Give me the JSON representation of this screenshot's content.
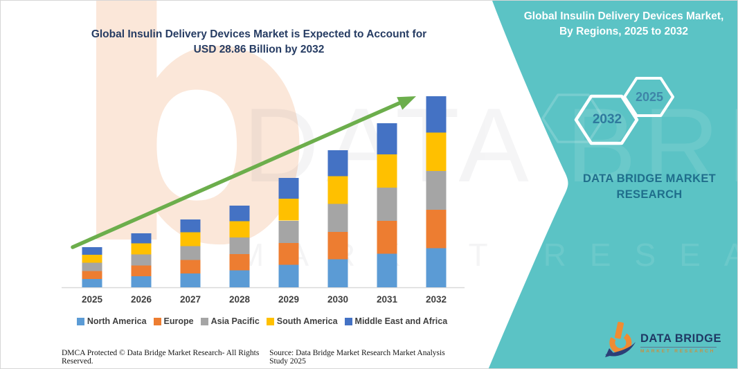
{
  "header": {
    "left_title_line1": "Global Insulin Delivery Devices Market is Expected to Account for",
    "left_title_line2": "USD 28.86 Billion by 2032",
    "right_title": "Global Insulin Delivery Devices Market, By Regions, 2025 to 2032"
  },
  "side_panel": {
    "background_color": "#5BC3C5",
    "hexagons": [
      {
        "label": "2032"
      },
      {
        "label": "2025"
      }
    ],
    "brand_line1": "DATA BRIDGE MARKET",
    "brand_line2": "RESEARCH"
  },
  "chart_data": {
    "type": "bar",
    "stacked": true,
    "title": "Global Insulin Delivery Devices Market is Expected to Account for USD 28.86 Billion by 2032",
    "unit": "USD Billion",
    "categories": [
      "2025",
      "2026",
      "2027",
      "2028",
      "2029",
      "2030",
      "2031",
      "2032"
    ],
    "series": [
      {
        "name": "North America",
        "color": "#5B9BD5",
        "values": [
          1.25,
          1.68,
          2.11,
          2.54,
          3.4,
          4.26,
          5.09,
          5.93
        ]
      },
      {
        "name": "Europe",
        "color": "#ED7D31",
        "values": [
          1.21,
          1.63,
          2.04,
          2.46,
          3.3,
          4.13,
          4.94,
          5.76
        ]
      },
      {
        "name": "Asia Pacific",
        "color": "#A5A5A5",
        "values": [
          1.23,
          1.66,
          2.08,
          2.51,
          3.36,
          4.21,
          5.03,
          5.86
        ]
      },
      {
        "name": "South America",
        "color": "#FFC000",
        "values": [
          1.22,
          1.65,
          2.07,
          2.49,
          3.33,
          4.18,
          5.0,
          5.82
        ]
      },
      {
        "name": "Middle East and Africa",
        "color": "#4472C4",
        "values": [
          1.15,
          1.55,
          1.95,
          2.35,
          3.14,
          3.94,
          4.71,
          5.49
        ]
      }
    ],
    "totals": [
      6.07,
      8.16,
      10.25,
      12.34,
      16.52,
      20.71,
      24.78,
      28.86
    ],
    "ylim": [
      0,
      30
    ],
    "grid": false,
    "legend_position": "bottom",
    "trend_arrow_color": "#6CAE4C",
    "axis_color": "#D9D9D9"
  },
  "footer": {
    "dmca": "DMCA Protected © Data Bridge Market Research- All Rights Reserved.",
    "source": "Source: Data Bridge Market Research Market Analysis Study 2025"
  },
  "logo": {
    "name": "DATA BRIDGE",
    "subtitle": "MARKET RESEARCH"
  },
  "watermark": {
    "letter": "b",
    "line1": "DATA BRIDGE",
    "line2": "MARKET RESEARCH"
  }
}
